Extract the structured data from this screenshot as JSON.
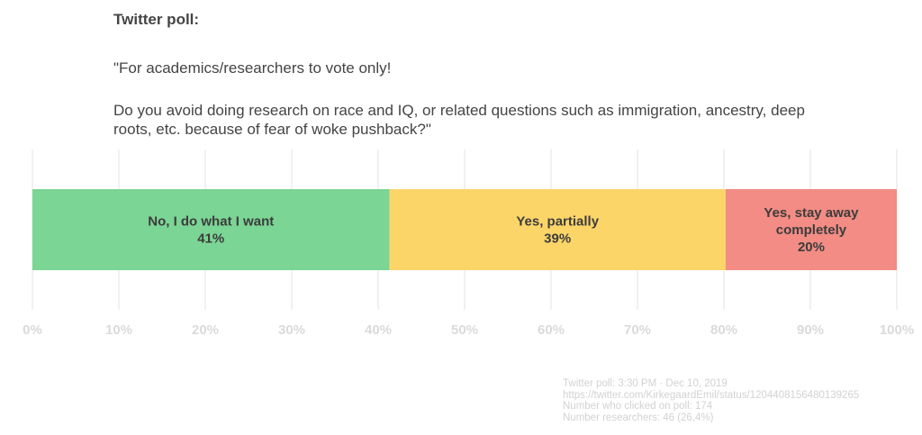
{
  "header": {
    "title": "Twitter poll:",
    "question_line1": "\"For academics/researchers to vote only!",
    "question_line2": "Do you avoid doing research on race and IQ, or related questions such as immigration, ancestry, deep roots, etc. because of fear of woke pushback?\""
  },
  "chart_data": {
    "type": "bar",
    "orientation": "horizontal-stacked",
    "title": "Twitter poll:",
    "xlabel": "",
    "ylabel": "",
    "xlim": [
      0,
      100
    ],
    "grid": true,
    "ticks": [
      "0%",
      "10%",
      "20%",
      "30%",
      "40%",
      "50%",
      "60%",
      "70%",
      "80%",
      "90%",
      "100%"
    ],
    "tick_values": [
      0,
      10,
      20,
      30,
      40,
      50,
      60,
      70,
      80,
      90,
      100
    ],
    "series": [
      {
        "name": "No, I do what I want",
        "value": 41.3,
        "label_lines": [
          "No, I do what I want",
          "41%"
        ],
        "color": "#7bd595"
      },
      {
        "name": "Yes, partially",
        "value": 38.9,
        "label_lines": [
          "Yes, partially",
          "39%"
        ],
        "color": "#fcd569"
      },
      {
        "name": "Yes, stay away completely",
        "value": 19.8,
        "label_lines": [
          "Yes, stay away",
          "completely",
          "20%"
        ],
        "color": "#f28c84"
      }
    ]
  },
  "footer": {
    "line1": "Twitter poll: 3:30 PM · Dec 10, 2019",
    "line2": "https://twitter.com/KirkegaardEmil/status/1204408156480139265",
    "line3": "Number who clicked on poll: 174",
    "line4": "Number researchers: 46 (26,4%)"
  }
}
